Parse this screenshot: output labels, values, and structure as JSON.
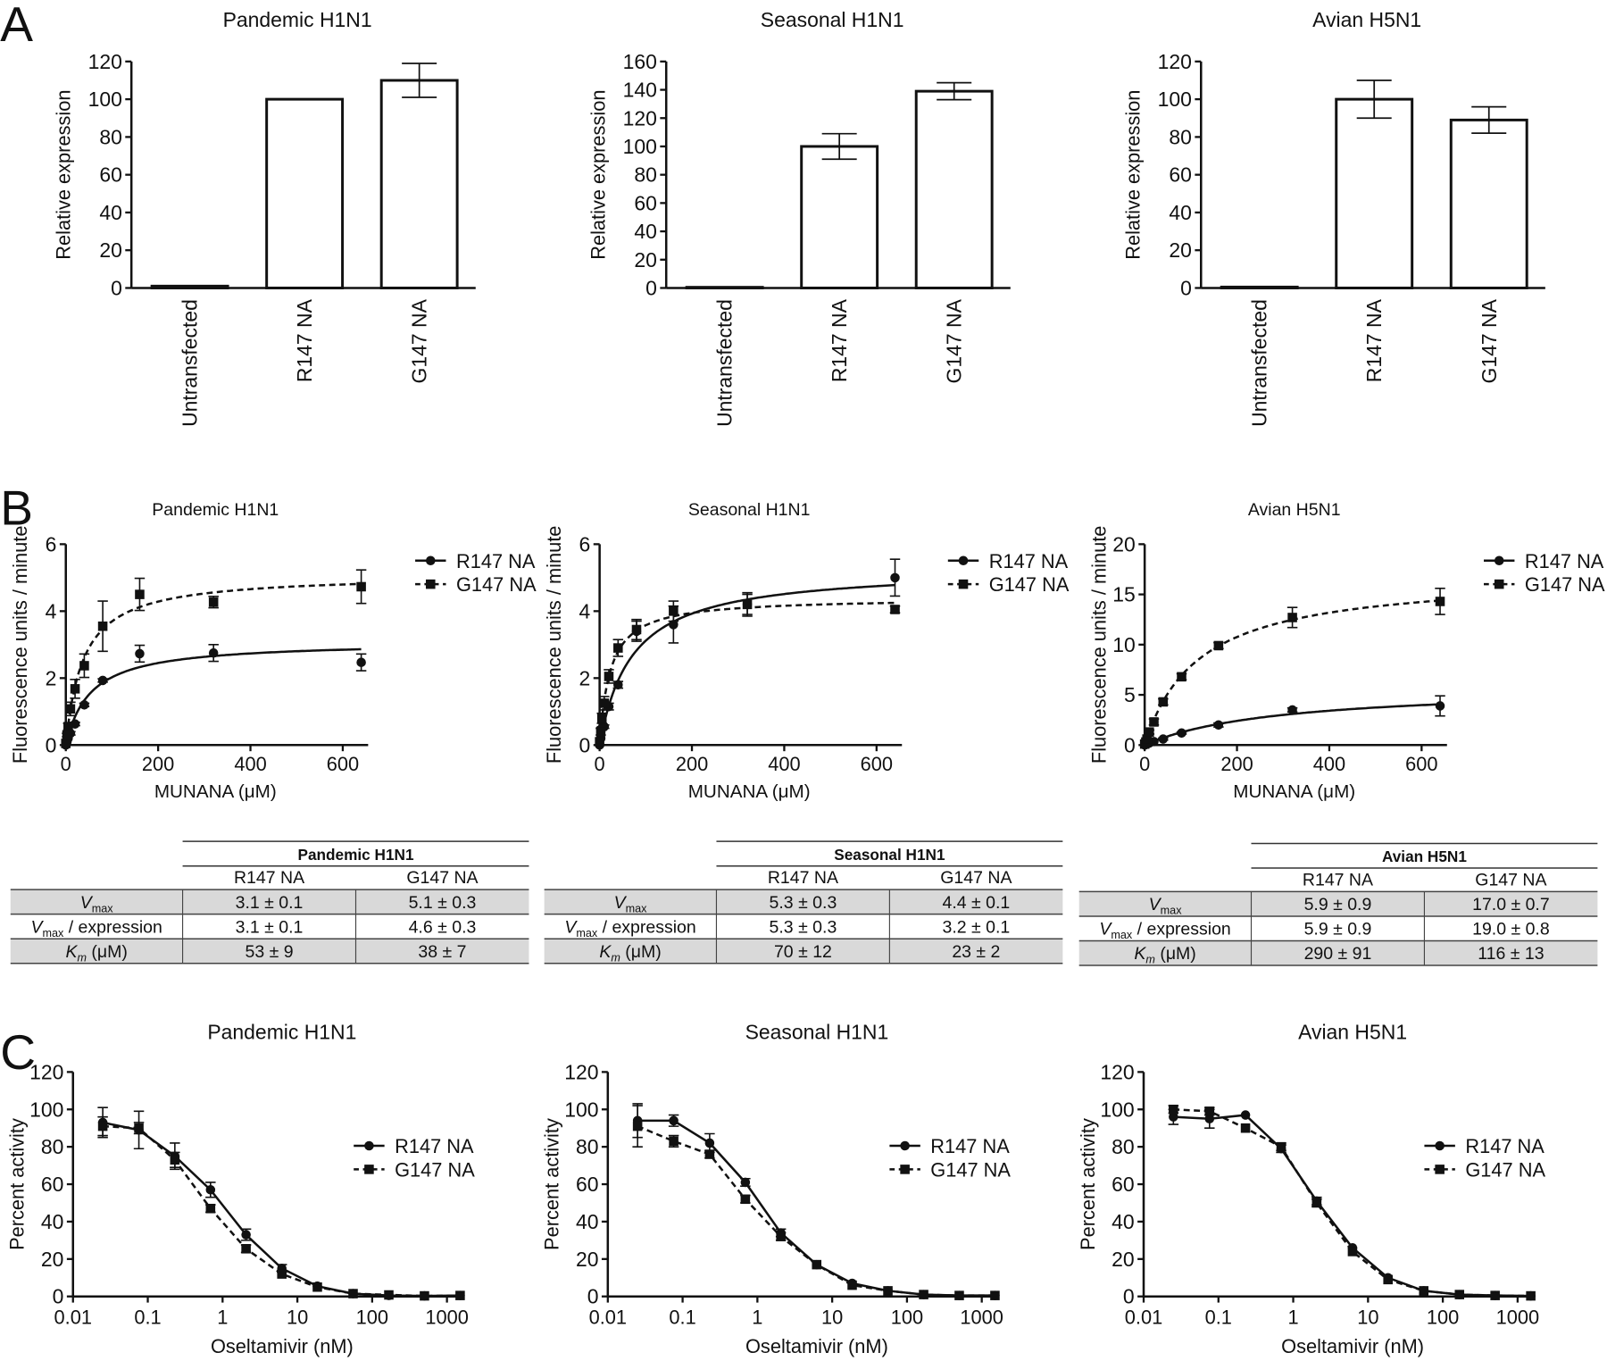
{
  "panel_letters": {
    "a": "A",
    "b": "B",
    "c": "C"
  },
  "chart_data": [
    {
      "id": "A1",
      "type": "bar",
      "title": "Pandemic H1N1",
      "ylabel": "Relative expression",
      "xlabel": "",
      "ylim": [
        0,
        120
      ],
      "yticks": [
        0,
        20,
        40,
        60,
        80,
        100,
        120
      ],
      "categories": [
        "Untransfected",
        "R147 NA",
        "G147 NA"
      ],
      "values": [
        1,
        100,
        110
      ],
      "errors": [
        0,
        0,
        9
      ]
    },
    {
      "id": "A2",
      "type": "bar",
      "title": "Seasonal H1N1",
      "ylabel": "Relative expression",
      "xlabel": "",
      "ylim": [
        0,
        160
      ],
      "yticks": [
        0,
        20,
        40,
        60,
        80,
        100,
        120,
        140,
        160
      ],
      "categories": [
        "Untransfected",
        "R147 NA",
        "G147 NA"
      ],
      "values": [
        0.5,
        100,
        139
      ],
      "errors": [
        0,
        9,
        6
      ]
    },
    {
      "id": "A3",
      "type": "bar",
      "title": "Avian H5N1",
      "ylabel": "Relative expression",
      "xlabel": "",
      "ylim": [
        0,
        120
      ],
      "yticks": [
        0,
        20,
        40,
        60,
        80,
        100,
        120
      ],
      "categories": [
        "Untransfected",
        "R147 NA",
        "G147 NA"
      ],
      "values": [
        0.5,
        100,
        89
      ],
      "errors": [
        0,
        10,
        7
      ]
    },
    {
      "id": "B1",
      "type": "scatter",
      "title": "Pandemic H1N1",
      "ylabel": "Fluorescence units / minute",
      "xlabel": "MUNANA (μM)",
      "xlim": [
        0,
        650
      ],
      "ylim": [
        0,
        6
      ],
      "xticks": [
        0,
        200,
        400,
        600
      ],
      "yticks": [
        0,
        2,
        4,
        6
      ],
      "x": [
        0,
        2.5,
        5,
        10,
        20,
        40,
        80,
        160,
        320,
        640
      ],
      "series": [
        {
          "name": "R147 NA",
          "values": [
            0,
            0.1,
            0.2,
            0.35,
            0.63,
            1.2,
            1.93,
            2.73,
            2.75,
            2.47
          ],
          "errors": [
            0,
            0,
            0,
            0.05,
            0.05,
            0.05,
            0.05,
            0.25,
            0.25,
            0.25
          ]
        },
        {
          "name": "G147 NA",
          "values": [
            0.05,
            0.3,
            0.55,
            1.08,
            1.68,
            2.37,
            3.55,
            4.5,
            4.27,
            4.73
          ],
          "errors": [
            0,
            0.05,
            0.1,
            0.2,
            0.28,
            0.35,
            0.75,
            0.48,
            0.17,
            0.5
          ]
        }
      ]
    },
    {
      "id": "B2",
      "type": "scatter",
      "title": "Seasonal H1N1",
      "ylabel": "Fluorescence units / minute",
      "xlabel": "MUNANA (μM)",
      "xlim": [
        0,
        650
      ],
      "ylim": [
        0,
        6
      ],
      "xticks": [
        0,
        200,
        400,
        600
      ],
      "yticks": [
        0,
        2,
        4,
        6
      ],
      "x": [
        0,
        2.5,
        5,
        10,
        20,
        40,
        80,
        160,
        320,
        640
      ],
      "series": [
        {
          "name": "R147 NA",
          "values": [
            0,
            0.2,
            0.5,
            0.55,
            1.15,
            1.8,
            3.4,
            3.6,
            4.2,
            5.0
          ],
          "errors": [
            0,
            0,
            0.05,
            0.05,
            0.1,
            0.1,
            0.3,
            0.55,
            0.3,
            0.55
          ]
        },
        {
          "name": "G147 NA",
          "values": [
            0.1,
            0.4,
            0.8,
            1.25,
            2.05,
            2.9,
            3.45,
            4.0,
            4.2,
            4.05
          ],
          "errors": [
            0,
            0.1,
            0.15,
            0.2,
            0.2,
            0.25,
            0.3,
            0.3,
            0.35,
            0.1
          ]
        }
      ]
    },
    {
      "id": "B3",
      "type": "scatter",
      "title": "Avian H5N1",
      "ylabel": "Fluorescence units / minute",
      "xlabel": "MUNANA (μM)",
      "xlim": [
        0,
        650
      ],
      "ylim": [
        0,
        20
      ],
      "xticks": [
        0,
        200,
        400,
        600
      ],
      "yticks": [
        0,
        5,
        10,
        15,
        20
      ],
      "x": [
        0,
        2.5,
        5,
        10,
        20,
        40,
        80,
        160,
        320,
        640
      ],
      "series": [
        {
          "name": "R147 NA",
          "values": [
            0,
            0.05,
            0.1,
            0.2,
            0.35,
            0.6,
            1.2,
            2.0,
            3.5,
            3.9
          ],
          "errors": [
            0,
            0,
            0,
            0,
            0,
            0.1,
            0.1,
            0.2,
            0.2,
            1.0
          ]
        },
        {
          "name": "G147 NA",
          "values": [
            0.1,
            0.3,
            0.6,
            1.3,
            2.3,
            4.3,
            6.8,
            9.9,
            12.7,
            14.3
          ],
          "errors": [
            0,
            0.1,
            0.1,
            0.2,
            0.3,
            0.3,
            0.3,
            0.3,
            1.0,
            1.3
          ]
        }
      ]
    },
    {
      "id": "C1",
      "type": "line",
      "title": "Pandemic H1N1",
      "ylabel": "Percent activity",
      "xlabel": "Oseltamivir (nM)",
      "xscale": "log",
      "xlim": [
        0.01,
        1500
      ],
      "ylim": [
        0,
        120
      ],
      "xticks": [
        "0.01",
        "0.1",
        "1",
        "10",
        "100",
        "1000"
      ],
      "yticks": [
        0,
        20,
        40,
        60,
        80,
        100,
        120
      ],
      "x": [
        0.025,
        0.076,
        0.23,
        0.69,
        2.06,
        6.2,
        18.5,
        55.6,
        167,
        500,
        1500
      ],
      "series": [
        {
          "name": "R147 NA",
          "values": [
            93,
            89,
            75,
            57,
            33,
            15,
            5.5,
            1.5,
            0.5,
            0.3,
            0.5
          ],
          "errors": [
            8,
            10,
            7,
            4,
            3,
            2,
            1,
            0.5,
            0.3,
            0.2,
            0.2
          ]
        },
        {
          "name": "G147 NA",
          "values": [
            91,
            90,
            73,
            47,
            25.5,
            12,
            5,
            1.5,
            0.8,
            0.3,
            0.5
          ],
          "errors": [
            5,
            3,
            4,
            2,
            2,
            1,
            1,
            0.5,
            0.3,
            0.2,
            0.2
          ]
        }
      ]
    },
    {
      "id": "C2",
      "type": "line",
      "title": "Seasonal H1N1",
      "ylabel": "Percent activity",
      "xlabel": "Oseltamivir (nM)",
      "xscale": "log",
      "xlim": [
        0.01,
        1500
      ],
      "ylim": [
        0,
        120
      ],
      "xticks": [
        "0.01",
        "0.1",
        "1",
        "10",
        "100",
        "1000"
      ],
      "yticks": [
        0,
        20,
        40,
        60,
        80,
        100,
        120
      ],
      "x": [
        0.025,
        0.076,
        0.23,
        0.69,
        2.06,
        6.2,
        18.5,
        55.6,
        167,
        500,
        1500
      ],
      "series": [
        {
          "name": "R147 NA",
          "values": [
            94,
            94,
            82,
            61,
            34,
            17,
            7,
            3,
            1,
            0.5,
            0.5
          ],
          "errors": [
            9,
            3,
            5,
            2,
            2,
            1,
            1,
            0.5,
            0.3,
            0.2,
            0.2
          ]
        },
        {
          "name": "G147 NA",
          "values": [
            91,
            83,
            76,
            52,
            32,
            17,
            6,
            3,
            1,
            0.5,
            0.5
          ],
          "errors": [
            11,
            3,
            2,
            2,
            2,
            1,
            1,
            0.5,
            0.3,
            0.2,
            0.2
          ]
        }
      ]
    },
    {
      "id": "C3",
      "type": "line",
      "title": "Avian H5N1",
      "ylabel": "Percent activity",
      "xlabel": "Oseltamivir (nM)",
      "xscale": "log",
      "xlim": [
        0.01,
        1500
      ],
      "ylim": [
        0,
        120
      ],
      "xticks": [
        "0.01",
        "0.1",
        "1",
        "10",
        "100",
        "1000"
      ],
      "yticks": [
        0,
        20,
        40,
        60,
        80,
        100,
        120
      ],
      "x": [
        0.025,
        0.076,
        0.23,
        0.69,
        2.06,
        6.2,
        18.5,
        55.6,
        167,
        500,
        1500
      ],
      "series": [
        {
          "name": "R147 NA",
          "values": [
            96,
            95,
            97,
            79,
            51,
            26,
            10,
            3,
            1,
            0.5,
            0.3
          ],
          "errors": [
            4,
            5,
            1,
            2,
            2,
            1,
            1,
            0.5,
            0.3,
            0.2,
            0.2
          ]
        },
        {
          "name": "G147 NA",
          "values": [
            100,
            99,
            90,
            80,
            50,
            24,
            9,
            3,
            1,
            0.5,
            0.3
          ],
          "errors": [
            2,
            2,
            1,
            2,
            2,
            1,
            1,
            0.5,
            0.3,
            0.2,
            0.2
          ]
        }
      ]
    }
  ],
  "tables": [
    {
      "title": "Pandemic H1N1",
      "columns": [
        "R147 NA",
        "G147 NA"
      ],
      "rows": [
        {
          "label_main": "V",
          "label_sub": "max",
          "label_rest": "",
          "values": [
            "3.1 ± 0.1",
            "5.1 ± 0.3"
          ]
        },
        {
          "label_main": "V",
          "label_sub": "max",
          "label_rest": " / expression",
          "values": [
            "3.1 ± 0.1",
            "4.6 ± 0.3"
          ]
        },
        {
          "label_main": "K",
          "label_sub": "m",
          "label_rest": " (μM)",
          "values": [
            "53 ± 9",
            "38 ± 7"
          ]
        }
      ]
    },
    {
      "title": "Seasonal H1N1",
      "columns": [
        "R147 NA",
        "G147 NA"
      ],
      "rows": [
        {
          "label_main": "V",
          "label_sub": "max",
          "label_rest": "",
          "values": [
            "5.3 ± 0.3",
            "4.4 ± 0.1"
          ]
        },
        {
          "label_main": "V",
          "label_sub": "max",
          "label_rest": " / expression",
          "values": [
            "5.3 ± 0.3",
            "3.2 ± 0.1"
          ]
        },
        {
          "label_main": "K",
          "label_sub": "m",
          "label_rest": " (μM)",
          "values": [
            "70 ± 12",
            "23 ± 2"
          ]
        }
      ]
    },
    {
      "title": "Avian H5N1",
      "columns": [
        "R147 NA",
        "G147 NA"
      ],
      "rows": [
        {
          "label_main": "V",
          "label_sub": "max",
          "label_rest": "",
          "values": [
            "5.9 ± 0.9",
            "17.0 ± 0.7"
          ]
        },
        {
          "label_main": "V",
          "label_sub": "max",
          "label_rest": " / expression",
          "values": [
            "5.9 ± 0.9",
            "19.0 ± 0.8"
          ]
        },
        {
          "label_main": "K",
          "label_sub": "m",
          "label_rest": " (μM)",
          "values": [
            "290 ± 91",
            "116 ± 13"
          ]
        }
      ]
    }
  ],
  "colors": {
    "ink": "#111111",
    "table_shade": "#d9d9d9"
  }
}
